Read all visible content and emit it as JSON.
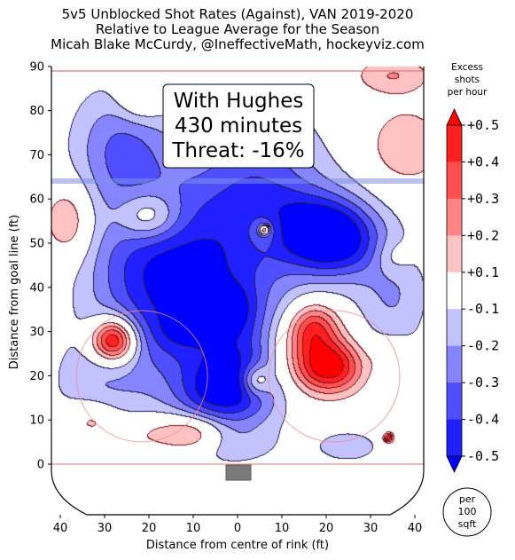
{
  "chart_data": {
    "type": "heatmap",
    "title_lines": [
      "5v5 Unblocked Shot Rates (Against), VAN 2019-2020",
      "Relative to League Average for the Season",
      "Micah Blake McCurdy, @IneffectiveMath, hockeyviz.com"
    ],
    "xlabel": "Distance from centre of rink (ft)",
    "ylabel": "Distance from goal line (ft)",
    "xlim": [
      -42,
      42
    ],
    "ylim": [
      -10,
      90
    ],
    "x_tick_values": [
      -40,
      -30,
      -20,
      -10,
      0,
      10,
      20,
      30,
      40
    ],
    "x_tick_labels": [
      "40",
      "30",
      "20",
      "10",
      "0",
      "10",
      "20",
      "30",
      "40"
    ],
    "y_ticks": [
      0,
      10,
      20,
      30,
      40,
      50,
      60,
      70,
      80,
      90
    ],
    "annotation": [
      "With Hughes",
      "430 minutes",
      "Threat: -16%"
    ],
    "colorbar": {
      "title": [
        "Excess",
        "shots",
        "per hour"
      ],
      "tick_labels": [
        "+0.5",
        "+0.4",
        "+0.3",
        "+0.2",
        "+0.1",
        "-0.1",
        "-0.2",
        "-0.3",
        "-0.4",
        "-0.5"
      ],
      "tick_values": [
        0.5,
        0.4,
        0.3,
        0.2,
        0.1,
        -0.1,
        -0.2,
        -0.3,
        -0.4,
        -0.5
      ],
      "levels": [
        {
          "from": 0.4,
          "to": 0.5,
          "color": "#ff1f1f"
        },
        {
          "from": 0.3,
          "to": 0.4,
          "color": "#ff4f4f"
        },
        {
          "from": 0.2,
          "to": 0.3,
          "color": "#ff8585"
        },
        {
          "from": 0.1,
          "to": 0.2,
          "color": "#ffc2c2"
        },
        {
          "from": -0.1,
          "to": 0.1,
          "color": "#ffffff"
        },
        {
          "from": -0.2,
          "to": -0.1,
          "color": "#c2c2ff"
        },
        {
          "from": -0.3,
          "to": -0.2,
          "color": "#8585ff"
        },
        {
          "from": -0.4,
          "to": -0.3,
          "color": "#4f4fff"
        },
        {
          "from": -0.5,
          "to": -0.4,
          "color": "#1f1fff"
        }
      ],
      "over_color": "#ff0000",
      "under_color": "#0000ff"
    },
    "scale_legend": [
      "per",
      "100",
      "sqft"
    ],
    "blobs": [
      {
        "x": -7,
        "y": 37,
        "sx": 13,
        "sy": 17,
        "v": -0.48
      },
      {
        "x": 3,
        "y": 20,
        "sx": 6,
        "sy": 7,
        "v": -0.3
      },
      {
        "x": -5,
        "y": 16,
        "sx": 6,
        "sy": 5,
        "v": -0.3
      },
      {
        "x": 22,
        "y": 51,
        "sx": 7,
        "sy": 6,
        "v": -0.55
      },
      {
        "x": 14,
        "y": 54,
        "sx": 8,
        "sy": 6,
        "v": -0.2
      },
      {
        "x": -22,
        "y": 45,
        "sx": 10,
        "sy": 12,
        "v": -0.25
      },
      {
        "x": 0,
        "y": 35,
        "sx": 3,
        "sy": 4,
        "v": -0.15
      },
      {
        "x": -13,
        "y": 30,
        "sx": 4,
        "sy": 3,
        "v": -0.1
      },
      {
        "x": -32,
        "y": 18,
        "sx": 8,
        "sy": 8,
        "v": -0.15
      },
      {
        "x": -26,
        "y": 72,
        "sx": 8,
        "sy": 10,
        "v": -0.3
      },
      {
        "x": 5,
        "y": 62,
        "sx": 12,
        "sy": 10,
        "v": -0.25
      },
      {
        "x": 35,
        "y": 38,
        "sx": 6,
        "sy": 10,
        "v": -0.2
      },
      {
        "x": 5,
        "y": 75,
        "sx": 8,
        "sy": 8,
        "v": -0.12
      },
      {
        "x": -2,
        "y": 4,
        "sx": 8,
        "sy": 3,
        "v": -0.1
      },
      {
        "x": 25,
        "y": 4,
        "sx": 6,
        "sy": 3,
        "v": -0.15
      },
      {
        "x": -28,
        "y": 28,
        "sx": 3.5,
        "sy": 3.5,
        "v": 0.7
      },
      {
        "x": 17,
        "y": 31,
        "sx": 4,
        "sy": 4,
        "v": 0.4
      },
      {
        "x": 21,
        "y": 22,
        "sx": 5,
        "sy": 4,
        "v": 0.5
      },
      {
        "x": 13,
        "y": 24,
        "sx": 8,
        "sy": 6,
        "v": 0.25
      },
      {
        "x": 4,
        "y": 19,
        "sx": 2.5,
        "sy": 2.5,
        "v": 0.35
      },
      {
        "x": -10,
        "y": 7,
        "sx": 5,
        "sy": 3,
        "v": 0.3
      },
      {
        "x": -20,
        "y": 7,
        "sx": 6,
        "sy": 3,
        "v": 0.15
      },
      {
        "x": -20,
        "y": 56,
        "sx": 5,
        "sy": 4,
        "v": 0.32
      },
      {
        "x": -38,
        "y": 55,
        "sx": 4,
        "sy": 6,
        "v": 0.25
      },
      {
        "x": 38,
        "y": 72,
        "sx": 6,
        "sy": 6,
        "v": 0.2
      },
      {
        "x": 35,
        "y": 88,
        "sx": 6,
        "sy": 3,
        "v": 0.2
      },
      {
        "x": -22,
        "y": 83,
        "sx": 4,
        "sy": 4,
        "v": 0.22
      },
      {
        "x": -33,
        "y": 10,
        "sx": 4,
        "sy": 3,
        "v": 0.2
      },
      {
        "x": 35,
        "y": 24,
        "sx": 3,
        "sy": 3,
        "v": 0.15
      },
      {
        "x": 6,
        "y": 53,
        "sx": 3,
        "sy": 3,
        "v": 0.18
      },
      {
        "x": 6,
        "y": 53,
        "sx": 0.8,
        "sy": 0.8,
        "v": 0.5
      },
      {
        "x": 34,
        "y": 6,
        "sx": 0.8,
        "sy": 0.8,
        "v": 0.5
      },
      {
        "x": 35,
        "y": 47,
        "sx": 3,
        "sy": 3,
        "v": 0.13
      }
    ]
  }
}
